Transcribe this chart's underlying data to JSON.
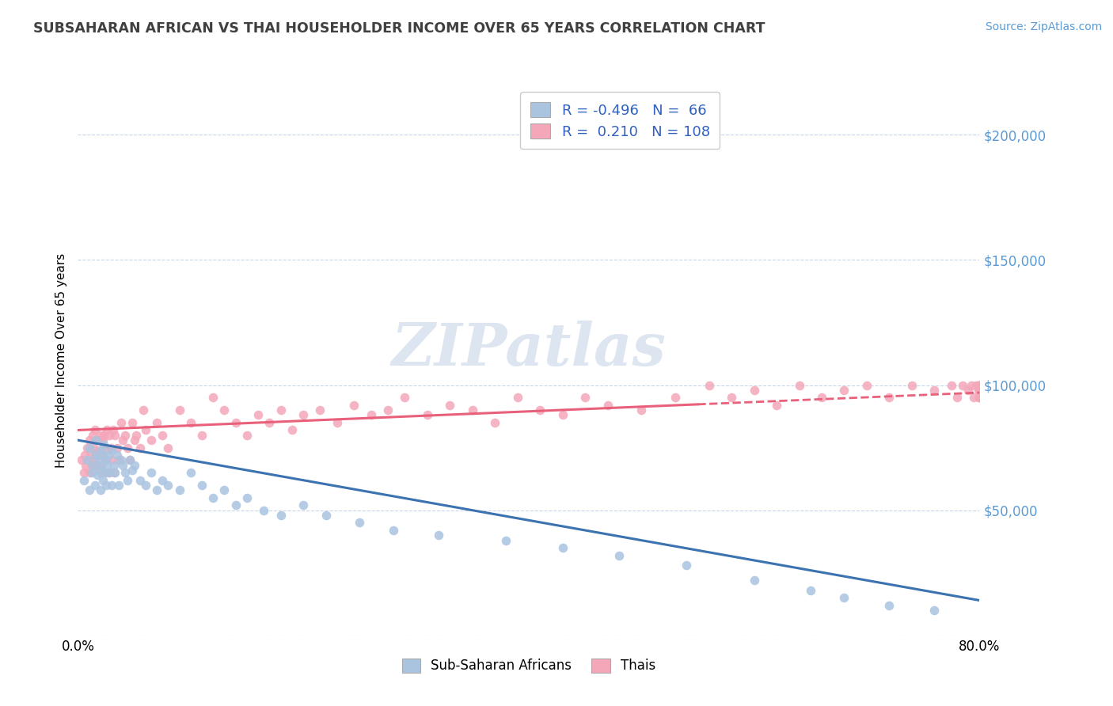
{
  "title": "SUBSAHARAN AFRICAN VS THAI HOUSEHOLDER INCOME OVER 65 YEARS CORRELATION CHART",
  "source": "Source: ZipAtlas.com",
  "ylabel": "Householder Income Over 65 years",
  "xlim": [
    0.0,
    0.8
  ],
  "ylim": [
    0,
    220000
  ],
  "blue_R": -0.496,
  "blue_N": 66,
  "pink_R": 0.21,
  "pink_N": 108,
  "blue_color": "#aac4e0",
  "pink_color": "#f4a7b9",
  "blue_line_color": "#3b72b0",
  "pink_line_color": "#e8607a",
  "legend_blue_label": "Sub-Saharan Africans",
  "legend_pink_label": "Thais",
  "watermark": "ZIPatlas",
  "background_color": "#ffffff",
  "grid_color": "#c8d4e8",
  "blue_scatter_x": [
    0.005,
    0.008,
    0.01,
    0.01,
    0.012,
    0.013,
    0.015,
    0.015,
    0.016,
    0.017,
    0.018,
    0.019,
    0.02,
    0.02,
    0.021,
    0.022,
    0.022,
    0.023,
    0.024,
    0.025,
    0.025,
    0.026,
    0.027,
    0.028,
    0.03,
    0.03,
    0.032,
    0.033,
    0.035,
    0.036,
    0.038,
    0.04,
    0.042,
    0.044,
    0.046,
    0.048,
    0.05,
    0.055,
    0.06,
    0.065,
    0.07,
    0.075,
    0.08,
    0.09,
    0.1,
    0.11,
    0.12,
    0.13,
    0.14,
    0.15,
    0.165,
    0.18,
    0.2,
    0.22,
    0.25,
    0.28,
    0.32,
    0.38,
    0.43,
    0.48,
    0.54,
    0.6,
    0.65,
    0.68,
    0.72,
    0.76
  ],
  "blue_scatter_y": [
    62000,
    70000,
    58000,
    75000,
    65000,
    68000,
    72000,
    60000,
    78000,
    64000,
    70000,
    66000,
    74000,
    58000,
    68000,
    72000,
    62000,
    76000,
    65000,
    70000,
    60000,
    68000,
    72000,
    65000,
    74000,
    60000,
    68000,
    65000,
    72000,
    60000,
    70000,
    68000,
    65000,
    62000,
    70000,
    66000,
    68000,
    62000,
    60000,
    65000,
    58000,
    62000,
    60000,
    58000,
    65000,
    60000,
    55000,
    58000,
    52000,
    55000,
    50000,
    48000,
    52000,
    48000,
    45000,
    42000,
    40000,
    38000,
    35000,
    32000,
    28000,
    22000,
    18000,
    15000,
    12000,
    10000
  ],
  "pink_scatter_x": [
    0.003,
    0.005,
    0.006,
    0.007,
    0.008,
    0.009,
    0.01,
    0.01,
    0.011,
    0.012,
    0.013,
    0.014,
    0.015,
    0.015,
    0.016,
    0.017,
    0.018,
    0.019,
    0.02,
    0.02,
    0.021,
    0.022,
    0.022,
    0.023,
    0.024,
    0.025,
    0.026,
    0.027,
    0.028,
    0.029,
    0.03,
    0.031,
    0.032,
    0.033,
    0.035,
    0.036,
    0.038,
    0.04,
    0.042,
    0.044,
    0.046,
    0.048,
    0.05,
    0.052,
    0.055,
    0.058,
    0.06,
    0.065,
    0.07,
    0.075,
    0.08,
    0.09,
    0.1,
    0.11,
    0.12,
    0.13,
    0.14,
    0.15,
    0.16,
    0.17,
    0.18,
    0.19,
    0.2,
    0.215,
    0.23,
    0.245,
    0.26,
    0.275,
    0.29,
    0.31,
    0.33,
    0.35,
    0.37,
    0.39,
    0.41,
    0.43,
    0.45,
    0.47,
    0.5,
    0.53,
    0.56,
    0.58,
    0.6,
    0.62,
    0.64,
    0.66,
    0.68,
    0.7,
    0.72,
    0.74,
    0.76,
    0.775,
    0.78,
    0.785,
    0.79,
    0.793,
    0.795,
    0.797,
    0.799,
    0.8,
    0.8,
    0.8,
    0.8,
    0.8,
    0.8,
    0.8,
    0.8,
    0.8
  ],
  "pink_scatter_y": [
    70000,
    65000,
    72000,
    68000,
    75000,
    70000,
    78000,
    65000,
    72000,
    68000,
    80000,
    75000,
    70000,
    82000,
    68000,
    74000,
    78000,
    72000,
    68000,
    80000,
    65000,
    78000,
    72000,
    80000,
    75000,
    70000,
    82000,
    65000,
    80000,
    75000,
    70000,
    82000,
    65000,
    80000,
    75000,
    70000,
    85000,
    78000,
    80000,
    75000,
    70000,
    85000,
    78000,
    80000,
    75000,
    90000,
    82000,
    78000,
    85000,
    80000,
    75000,
    90000,
    85000,
    80000,
    95000,
    90000,
    85000,
    80000,
    88000,
    85000,
    90000,
    82000,
    88000,
    90000,
    85000,
    92000,
    88000,
    90000,
    95000,
    88000,
    92000,
    90000,
    85000,
    95000,
    90000,
    88000,
    95000,
    92000,
    90000,
    95000,
    100000,
    95000,
    98000,
    92000,
    100000,
    95000,
    98000,
    100000,
    95000,
    100000,
    98000,
    100000,
    95000,
    100000,
    98000,
    100000,
    95000,
    100000,
    98000,
    100000,
    95000,
    100000,
    98000,
    100000,
    95000,
    100000,
    95000,
    100000
  ]
}
